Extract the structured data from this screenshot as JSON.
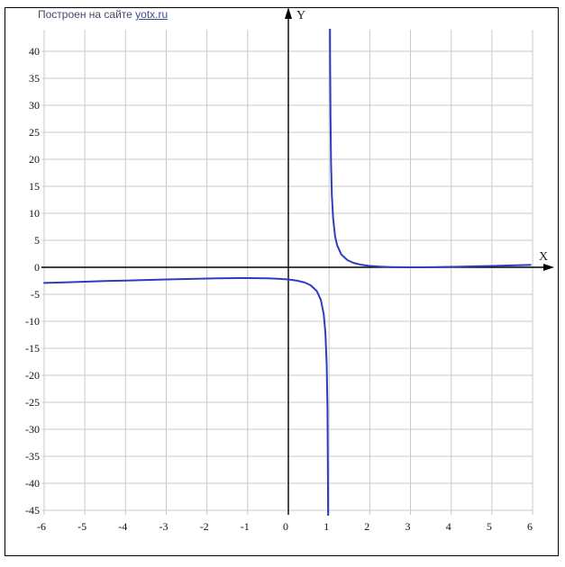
{
  "header": {
    "title_prefix": "Построен на сайте",
    "link_text": "yotx.ru"
  },
  "axes": {
    "x_label": "X",
    "y_label": "Y",
    "x_ticks": [
      -6,
      -5,
      -4,
      -3,
      -2,
      -1,
      0,
      1,
      2,
      3,
      4,
      5,
      6
    ],
    "y_ticks": [
      40,
      35,
      30,
      25,
      20,
      15,
      10,
      5,
      0,
      -5,
      -10,
      -15,
      -20,
      -25,
      -30,
      -35,
      -40,
      -45
    ]
  },
  "colors": {
    "curve": "#2e3cc0",
    "grid": "#c9c9c9",
    "axis": "#000000",
    "title_text": "#434968",
    "link": "#3e4a8e"
  },
  "chart_data": {
    "type": "line",
    "xlabel": "X",
    "ylabel": "Y",
    "x_range": [
      -6,
      6
    ],
    "y_range": [
      -45,
      44
    ],
    "x_tick_step": 1,
    "y_tick_step": 5,
    "grid": true,
    "legend": "none",
    "vertical_asymptote_x": 1,
    "local_maximum": [
      -1,
      -2
    ],
    "local_minimum": [
      3,
      0
    ],
    "function_estimate": "y = (x-3)^2 / (4(x-1))",
    "curve_color": "#2e3cc0",
    "series": [
      {
        "name": "branch x<1",
        "points": [
          [
            -6,
            -2.893
          ],
          [
            -5.5,
            -2.779
          ],
          [
            -5,
            -2.667
          ],
          [
            -4.5,
            -2.557
          ],
          [
            -4,
            -2.45
          ],
          [
            -3.5,
            -2.347
          ],
          [
            -3,
            -2.25
          ],
          [
            -2.5,
            -2.161
          ],
          [
            -2,
            -2.083
          ],
          [
            -1.75,
            -2.051
          ],
          [
            -1.5,
            -2.025
          ],
          [
            -1.25,
            -2.007
          ],
          [
            -1,
            -2
          ],
          [
            -0.75,
            -2.009
          ],
          [
            -0.5,
            -2.042
          ],
          [
            -0.25,
            -2.113
          ],
          [
            0,
            -2.25
          ],
          [
            0.2,
            -2.45
          ],
          [
            0.4,
            -2.817
          ],
          [
            0.55,
            -3.335
          ],
          [
            0.7,
            -4.408
          ],
          [
            0.8,
            -6.05
          ],
          [
            0.87,
            -8.725
          ],
          [
            0.91,
            -12.134
          ],
          [
            0.94,
            -17.682
          ],
          [
            0.96,
            -26.01
          ],
          [
            0.975,
            -41.006
          ],
          [
            0.982,
            -56.561
          ]
        ]
      },
      {
        "name": "branch x>1",
        "points": [
          [
            1.018,
            54.558
          ],
          [
            1.025,
            39.006
          ],
          [
            1.035,
            27.58
          ],
          [
            1.05,
            19.013
          ],
          [
            1.07,
            13.303
          ],
          [
            1.1,
            9.025
          ],
          [
            1.15,
            5.704
          ],
          [
            1.2,
            4.05
          ],
          [
            1.3,
            2.408
          ],
          [
            1.45,
            1.335
          ],
          [
            1.6,
            0.817
          ],
          [
            1.8,
            0.45
          ],
          [
            2,
            0.25
          ],
          [
            2.25,
            0.113
          ],
          [
            2.5,
            0.042
          ],
          [
            2.75,
            0.009
          ],
          [
            3,
            0
          ],
          [
            3.25,
            0.007
          ],
          [
            3.5,
            0.025
          ],
          [
            4,
            0.083
          ],
          [
            4.5,
            0.161
          ],
          [
            5,
            0.25
          ],
          [
            5.5,
            0.347
          ],
          [
            5.95,
            0.438
          ]
        ]
      }
    ]
  }
}
